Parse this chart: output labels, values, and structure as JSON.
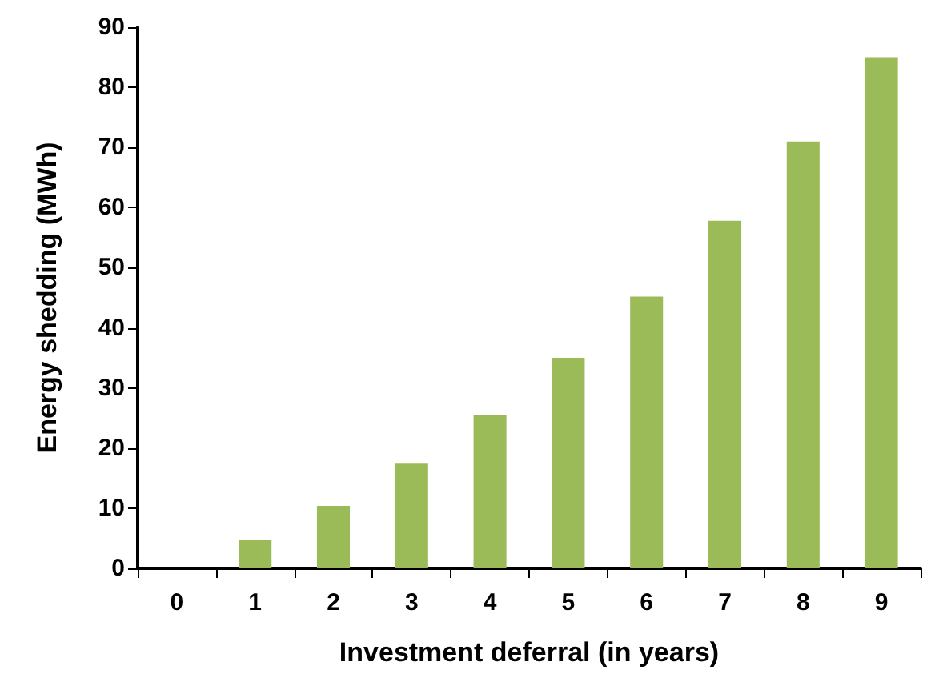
{
  "chart_data": {
    "type": "bar",
    "xlabel": "Investment deferral (in years)",
    "ylabel": "Energy shedding (MWh)",
    "categories": [
      "0",
      "1",
      "2",
      "3",
      "4",
      "5",
      "6",
      "7",
      "8",
      "9"
    ],
    "values": [
      0,
      4.8,
      10.4,
      17.4,
      25.5,
      35,
      45.2,
      57.8,
      71,
      85
    ],
    "color": "#9bbb59",
    "ylim": [
      0,
      90
    ],
    "yticks": [
      0,
      10,
      20,
      30,
      40,
      50,
      60,
      70,
      80,
      90
    ],
    "grid": false
  }
}
